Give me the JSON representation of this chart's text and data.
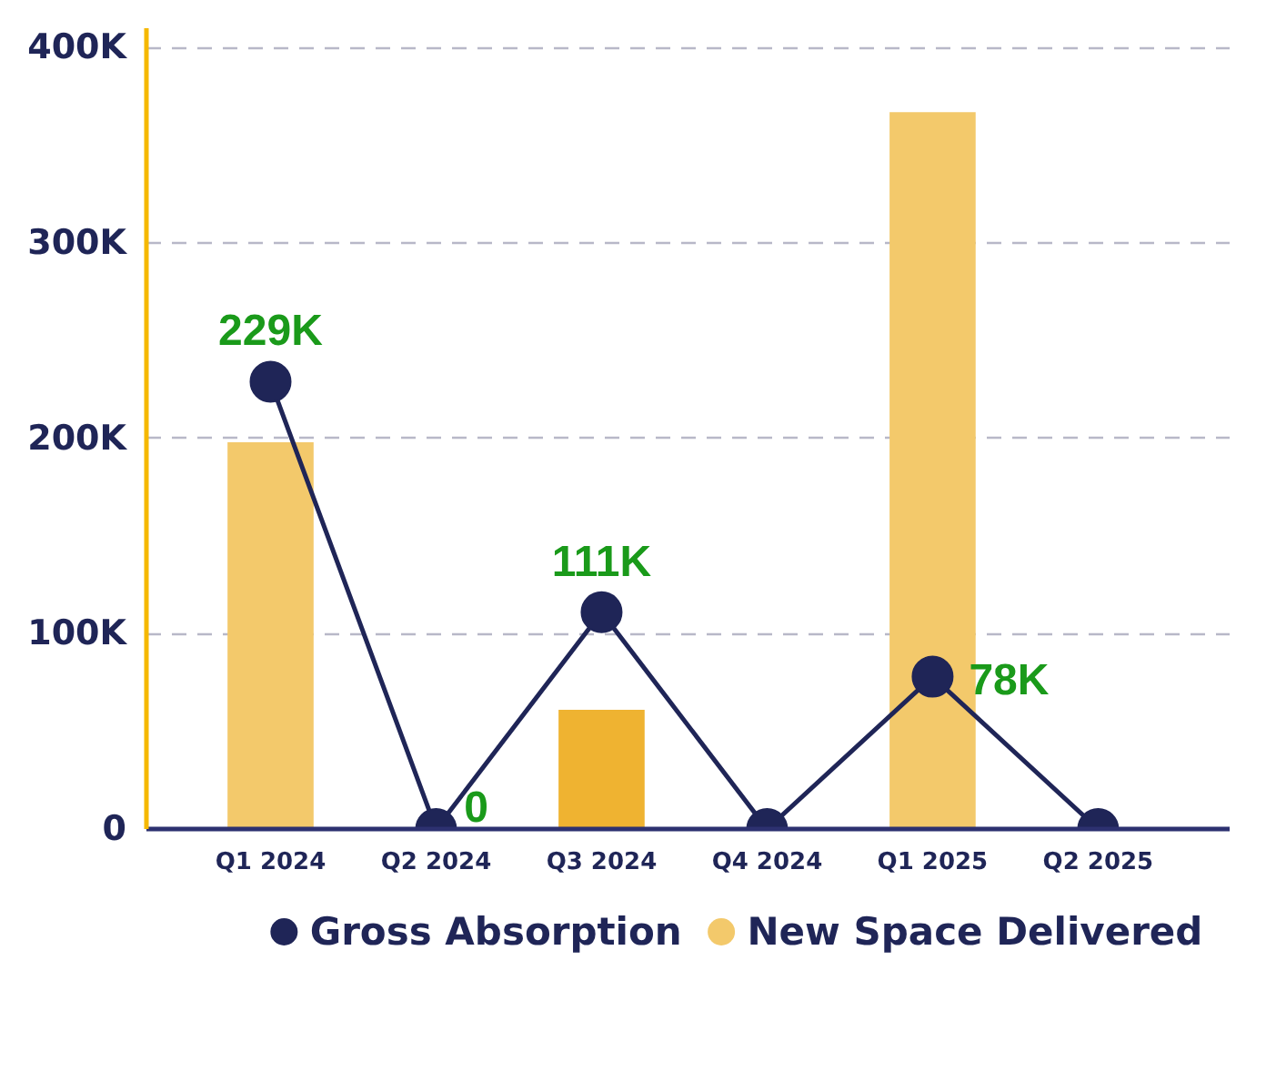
{
  "chart_data": {
    "type": "bar",
    "categories": [
      "Q1 2024",
      "Q2 2024",
      "Q3 2024",
      "Q4 2024",
      "Q1 2025",
      "Q2 2025"
    ],
    "series": [
      {
        "name": "Gross Absorption",
        "type": "line",
        "color": "#1f2557",
        "values": [
          229000,
          0,
          111000,
          0,
          78000,
          0
        ],
        "value_labels": [
          "229K",
          "0",
          "111K",
          null,
          "78K",
          null
        ]
      },
      {
        "name": "New Space Delivered",
        "color": "#f3c96b",
        "colors": [
          "#f3c96b",
          "#f3c96b",
          "#efb331",
          "#f3c96b",
          "#f3c96b",
          "#f3c96b"
        ],
        "values": [
          198000,
          0,
          61000,
          0,
          367000,
          0
        ]
      }
    ],
    "ylim": [
      0,
      410000
    ],
    "yticks": [
      {
        "value": 0,
        "label": "0"
      },
      {
        "value": 100000,
        "label": "100K"
      },
      {
        "value": 200000,
        "label": "200K"
      },
      {
        "value": 300000,
        "label": "300K"
      },
      {
        "value": 400000,
        "label": "400K"
      }
    ],
    "grid": "y",
    "legend": "bottom",
    "marker": "circle",
    "line_style": "solid"
  }
}
